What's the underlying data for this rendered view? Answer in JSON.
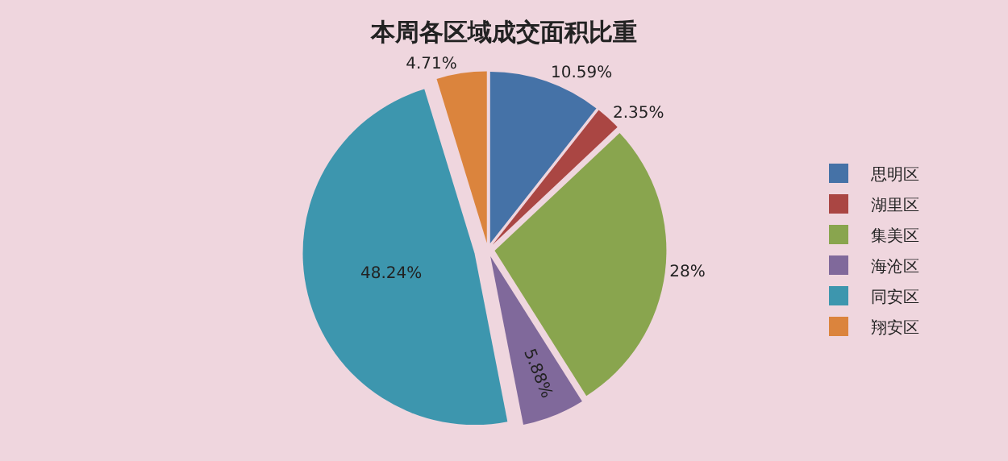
{
  "chart_data": {
    "type": "pie",
    "title": "本周各区域成交面积比重",
    "categories": [
      "思明区",
      "湖里区",
      "集美区",
      "海沧区",
      "同安区",
      "翔安区"
    ],
    "values": [
      10.59,
      2.35,
      28,
      5.88,
      48.24,
      4.71
    ],
    "colors": [
      "#4572a7",
      "#aa4643",
      "#89a54e",
      "#80699b",
      "#3d96ae",
      "#db843d"
    ],
    "value_labels": [
      "10.59%",
      "2.35%",
      "28%",
      "5.88%",
      "48.24%",
      "4.71%"
    ],
    "legend": "right"
  }
}
